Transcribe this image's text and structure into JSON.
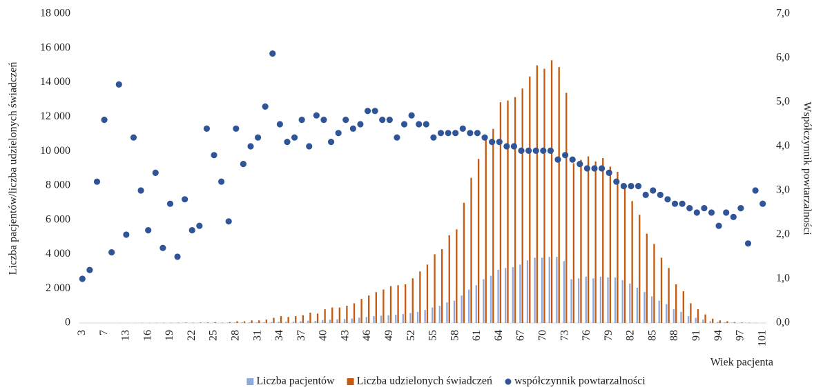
{
  "chart_data": {
    "type": "bar-scatter",
    "x_label": "Wiek pacjenta",
    "y_label": "Liczba pacjentów/liczba udzielonych świadczeń",
    "y2_label": "Współczynnik powtarzalności",
    "categories": [
      "3",
      null,
      null,
      "7",
      null,
      null,
      "13",
      null,
      null,
      "16",
      null,
      null,
      "19",
      null,
      null,
      "22",
      null,
      null,
      "25",
      null,
      null,
      "28",
      null,
      null,
      "31",
      null,
      null,
      "34",
      null,
      null,
      "37",
      null,
      null,
      "40",
      null,
      null,
      "43",
      null,
      null,
      "46",
      null,
      null,
      "49",
      null,
      null,
      "52",
      null,
      null,
      "55",
      null,
      null,
      "58",
      null,
      null,
      "61",
      null,
      null,
      "64",
      null,
      null,
      "67",
      null,
      null,
      "70",
      null,
      null,
      "73",
      null,
      null,
      "76",
      null,
      null,
      "79",
      null,
      null,
      "82",
      null,
      null,
      "85",
      null,
      null,
      "88",
      null,
      null,
      "91",
      null,
      null,
      "94",
      null,
      null,
      "97",
      null,
      null,
      "101"
    ],
    "series": [
      {
        "name": "Liczba pacjentów",
        "kind": "bar",
        "color": "#8faadc",
        "values": [
          0,
          0,
          0,
          0,
          0,
          0,
          0,
          0,
          0,
          0,
          5,
          5,
          5,
          5,
          5,
          5,
          10,
          10,
          10,
          5,
          20,
          30,
          40,
          40,
          40,
          50,
          60,
          70,
          80,
          80,
          100,
          130,
          120,
          170,
          190,
          210,
          230,
          260,
          310,
          350,
          400,
          430,
          450,
          480,
          520,
          580,
          650,
          760,
          900,
          1000,
          1200,
          1300,
          1600,
          1950,
          2200,
          2550,
          2750,
          3100,
          3200,
          3250,
          3400,
          3650,
          3800,
          3800,
          3850,
          3850,
          3600,
          2550,
          2600,
          2700,
          2600,
          2700,
          2650,
          2650,
          2500,
          2300,
          2050,
          1800,
          1550,
          1300,
          1100,
          800,
          650,
          400,
          300,
          200,
          100,
          60,
          40,
          20,
          10,
          5,
          5,
          2
        ]
      },
      {
        "name": "Liczba udzielonych świadczeń",
        "kind": "bar",
        "color": "#c55a11",
        "values": [
          0,
          0,
          0,
          0,
          0,
          5,
          5,
          5,
          10,
          10,
          10,
          15,
          15,
          20,
          25,
          20,
          30,
          30,
          50,
          20,
          50,
          100,
          100,
          150,
          150,
          200,
          300,
          400,
          350,
          400,
          450,
          600,
          550,
          800,
          900,
          900,
          1000,
          1150,
          1400,
          1600,
          1800,
          1950,
          2150,
          2200,
          2250,
          2600,
          3000,
          3400,
          4000,
          4300,
          5100,
          5450,
          7000,
          8450,
          9550,
          10800,
          11300,
          12850,
          12950,
          13150,
          13650,
          14350,
          15000,
          14800,
          15300,
          14900,
          13400,
          9300,
          9500,
          9700,
          9400,
          9600,
          9100,
          8800,
          8100,
          7100,
          6300,
          5200,
          4600,
          3800,
          3200,
          2250,
          1850,
          1150,
          800,
          500,
          250,
          150,
          100,
          50,
          30,
          20,
          10,
          5
        ]
      },
      {
        "name": "współczynnik powtarzalności",
        "kind": "scatter",
        "axis": "y2",
        "color": "#2f5597",
        "values": [
          1.0,
          1.2,
          3.2,
          4.6,
          1.6,
          5.4,
          2.0,
          4.2,
          3.0,
          2.1,
          3.4,
          1.7,
          2.7,
          1.5,
          2.8,
          2.1,
          2.2,
          4.4,
          3.8,
          3.2,
          2.3,
          4.4,
          3.6,
          4.0,
          4.2,
          4.9,
          6.1,
          4.5,
          4.1,
          4.2,
          4.6,
          4.0,
          4.7,
          4.6,
          4.1,
          4.3,
          4.6,
          4.4,
          4.5,
          4.8,
          4.8,
          4.6,
          4.6,
          4.2,
          4.5,
          4.7,
          4.5,
          4.5,
          4.2,
          4.3,
          4.3,
          4.3,
          4.4,
          4.3,
          4.3,
          4.2,
          4.1,
          4.1,
          4.0,
          4.0,
          3.9,
          3.9,
          3.9,
          3.9,
          3.9,
          3.7,
          3.8,
          3.7,
          3.6,
          3.5,
          3.5,
          3.5,
          3.4,
          3.2,
          3.1,
          3.1,
          3.1,
          2.9,
          3.0,
          2.9,
          2.8,
          2.7,
          2.7,
          2.6,
          2.5,
          2.6,
          2.5,
          2.2,
          2.5,
          2.4,
          2.6,
          1.8,
          3.0,
          2.7
        ]
      }
    ],
    "ylim": [
      0,
      18000
    ],
    "yticks": [
      0,
      {
        "value": 2000,
        "label": "2 000"
      },
      {
        "value": 4000,
        "label": "4 000"
      },
      {
        "value": 6000,
        "label": "6 000"
      },
      {
        "value": 8000,
        "label": "8 000"
      },
      {
        "value": 10000,
        "label": "10 000"
      },
      {
        "value": 12000,
        "label": "12 000"
      },
      {
        "value": 14000,
        "label": "14 000"
      },
      {
        "value": 16000,
        "label": "16 000"
      },
      {
        "value": 18000,
        "label": "18 000"
      }
    ],
    "y2lim": [
      0,
      7
    ],
    "y2ticks": [
      {
        "value": 0,
        "label": "0,0"
      },
      {
        "value": 1,
        "label": "1,0"
      },
      {
        "value": 2,
        "label": "2,0"
      },
      {
        "value": 3,
        "label": "3,0"
      },
      {
        "value": 4,
        "label": "4,0"
      },
      {
        "value": 5,
        "label": "5,0"
      },
      {
        "value": 6,
        "label": "6,0"
      },
      {
        "value": 7,
        "label": "7,0"
      }
    ],
    "legend": "bottom"
  }
}
